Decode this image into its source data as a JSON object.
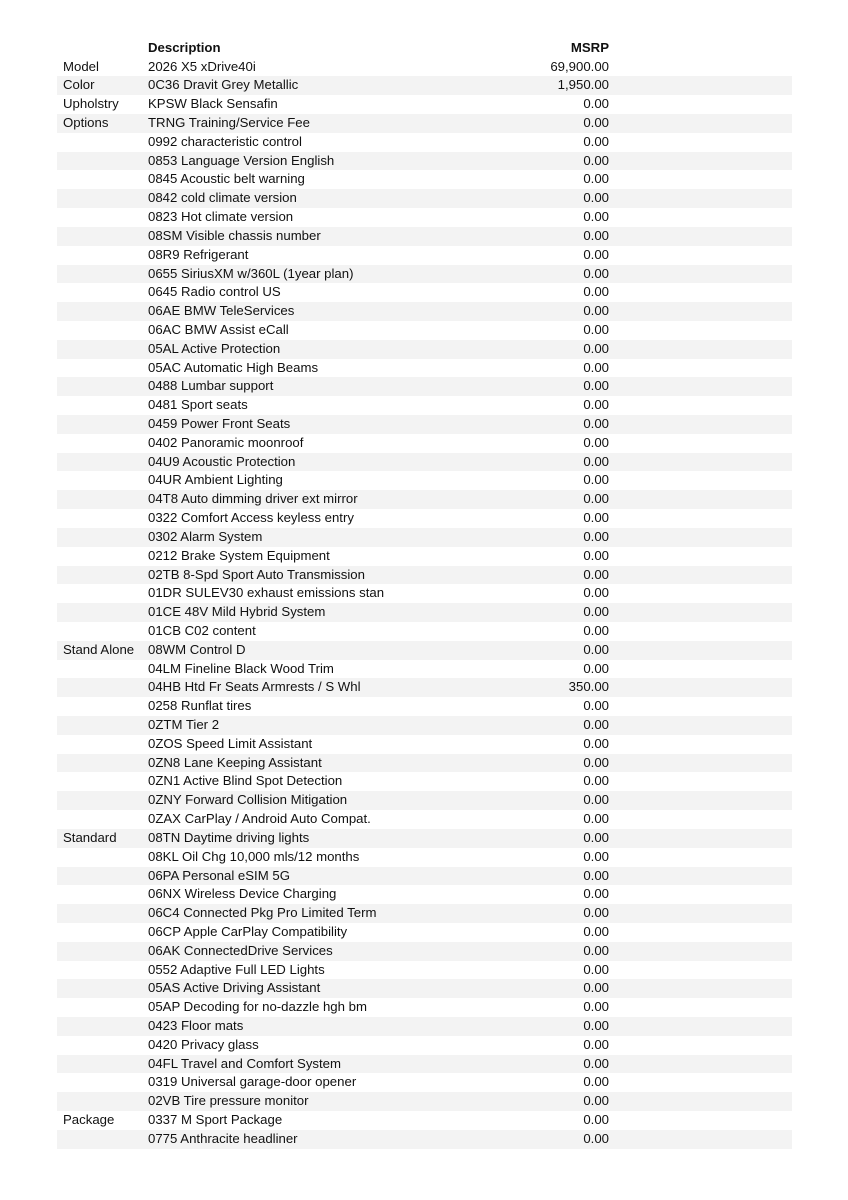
{
  "header": {
    "description": "Description",
    "msrp": "MSRP"
  },
  "colors": {
    "stripe": "#f3f3f3",
    "text": "#111111"
  },
  "rows": [
    {
      "category": "Model",
      "description": "2026 X5 xDrive40i",
      "msrp": "69,900.00"
    },
    {
      "category": "Color",
      "description": "0C36 Dravit Grey Metallic",
      "msrp": "1,950.00"
    },
    {
      "category": "Upholstry",
      "description": "KPSW Black Sensafin",
      "msrp": "0.00"
    },
    {
      "category": "Options",
      "description": "TRNG Training/Service Fee",
      "msrp": "0.00"
    },
    {
      "category": "",
      "description": "0992 characteristic control",
      "msrp": "0.00"
    },
    {
      "category": "",
      "description": "0853 Language Version English",
      "msrp": "0.00"
    },
    {
      "category": "",
      "description": "0845 Acoustic belt warning",
      "msrp": "0.00"
    },
    {
      "category": "",
      "description": "0842 cold climate version",
      "msrp": "0.00"
    },
    {
      "category": "",
      "description": "0823 Hot climate version",
      "msrp": "0.00"
    },
    {
      "category": "",
      "description": "08SM Visible chassis number",
      "msrp": "0.00"
    },
    {
      "category": "",
      "description": "08R9 Refrigerant",
      "msrp": "0.00"
    },
    {
      "category": "",
      "description": "0655 SiriusXM w/360L (1year plan)",
      "msrp": "0.00"
    },
    {
      "category": "",
      "description": "0645 Radio control US",
      "msrp": "0.00"
    },
    {
      "category": "",
      "description": "06AE BMW TeleServices",
      "msrp": "0.00"
    },
    {
      "category": "",
      "description": "06AC BMW Assist eCall",
      "msrp": "0.00"
    },
    {
      "category": "",
      "description": "05AL Active Protection",
      "msrp": "0.00"
    },
    {
      "category": "",
      "description": "05AC Automatic High Beams",
      "msrp": "0.00"
    },
    {
      "category": "",
      "description": "0488 Lumbar support",
      "msrp": "0.00"
    },
    {
      "category": "",
      "description": "0481 Sport seats",
      "msrp": "0.00"
    },
    {
      "category": "",
      "description": "0459 Power Front Seats",
      "msrp": "0.00"
    },
    {
      "category": "",
      "description": "0402 Panoramic moonroof",
      "msrp": "0.00"
    },
    {
      "category": "",
      "description": "04U9 Acoustic Protection",
      "msrp": "0.00"
    },
    {
      "category": "",
      "description": "04UR Ambient Lighting",
      "msrp": "0.00"
    },
    {
      "category": "",
      "description": "04T8 Auto dimming driver ext mirror",
      "msrp": "0.00"
    },
    {
      "category": "",
      "description": "0322 Comfort Access keyless entry",
      "msrp": "0.00"
    },
    {
      "category": "",
      "description": "0302 Alarm System",
      "msrp": "0.00"
    },
    {
      "category": "",
      "description": "0212 Brake System Equipment",
      "msrp": "0.00"
    },
    {
      "category": "",
      "description": "02TB 8-Spd Sport Auto Transmission",
      "msrp": "0.00"
    },
    {
      "category": "",
      "description": "01DR SULEV30 exhaust emissions stan",
      "msrp": "0.00"
    },
    {
      "category": "",
      "description": "01CE 48V Mild Hybrid System",
      "msrp": "0.00"
    },
    {
      "category": "",
      "description": "01CB C02 content",
      "msrp": "0.00"
    },
    {
      "category": "Stand Alone",
      "description": "08WM Control D",
      "msrp": "0.00"
    },
    {
      "category": "",
      "description": "04LM Fineline Black Wood Trim",
      "msrp": "0.00"
    },
    {
      "category": "",
      "description": "04HB Htd Fr Seats Armrests / S Whl",
      "msrp": "350.00"
    },
    {
      "category": "",
      "description": "0258 Runflat tires",
      "msrp": "0.00"
    },
    {
      "category": "",
      "description": "0ZTM Tier 2",
      "msrp": "0.00"
    },
    {
      "category": "",
      "description": "0ZOS Speed Limit Assistant",
      "msrp": "0.00"
    },
    {
      "category": "",
      "description": "0ZN8 Lane Keeping Assistant",
      "msrp": "0.00"
    },
    {
      "category": "",
      "description": "0ZN1 Active Blind Spot Detection",
      "msrp": "0.00"
    },
    {
      "category": "",
      "description": "0ZNY Forward Collision Mitigation",
      "msrp": "0.00"
    },
    {
      "category": "",
      "description": "0ZAX CarPlay / Android Auto Compat.",
      "msrp": "0.00"
    },
    {
      "category": "Standard",
      "description": "08TN Daytime driving lights",
      "msrp": "0.00"
    },
    {
      "category": "",
      "description": "08KL Oil Chg 10,000 mls/12 months",
      "msrp": "0.00"
    },
    {
      "category": "",
      "description": "06PA Personal eSIM 5G",
      "msrp": "0.00"
    },
    {
      "category": "",
      "description": "06NX Wireless Device Charging",
      "msrp": "0.00"
    },
    {
      "category": "",
      "description": "06C4 Connected Pkg Pro Limited Term",
      "msrp": "0.00"
    },
    {
      "category": "",
      "description": "06CP Apple CarPlay Compatibility",
      "msrp": "0.00"
    },
    {
      "category": "",
      "description": "06AK ConnectedDrive Services",
      "msrp": "0.00"
    },
    {
      "category": "",
      "description": "0552 Adaptive Full LED Lights",
      "msrp": "0.00"
    },
    {
      "category": "",
      "description": "05AS Active Driving Assistant",
      "msrp": "0.00"
    },
    {
      "category": "",
      "description": "05AP Decoding for no-dazzle hgh bm",
      "msrp": "0.00"
    },
    {
      "category": "",
      "description": "0423 Floor mats",
      "msrp": "0.00"
    },
    {
      "category": "",
      "description": "0420 Privacy glass",
      "msrp": "0.00"
    },
    {
      "category": "",
      "description": "04FL Travel and Comfort System",
      "msrp": "0.00"
    },
    {
      "category": "",
      "description": "0319 Universal garage-door opener",
      "msrp": "0.00"
    },
    {
      "category": "",
      "description": "02VB Tire pressure monitor",
      "msrp": "0.00"
    },
    {
      "category": "Package",
      "description": "0337 M Sport Package",
      "msrp": "0.00"
    },
    {
      "category": "",
      "description": "0775 Anthracite headliner",
      "msrp": "0.00"
    }
  ]
}
